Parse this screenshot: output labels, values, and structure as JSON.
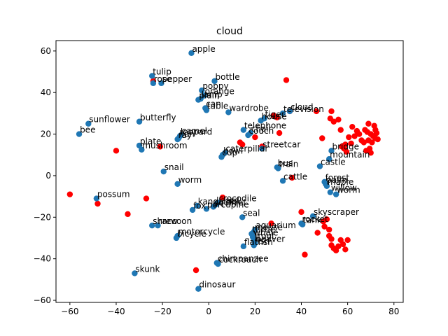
{
  "chart_data": {
    "type": "scatter",
    "title": "cloud",
    "xlabel": "",
    "ylabel": "",
    "xlim": [
      -66,
      84
    ],
    "ylim": [
      -61,
      65
    ],
    "xticks": [
      -60,
      -40,
      -20,
      0,
      20,
      40,
      60,
      80
    ],
    "yticks": [
      -60,
      -40,
      -20,
      0,
      20,
      40,
      60
    ],
    "grid": false,
    "colors": {
      "labeled": "#1f77b4",
      "unlabeled": "#ff0000",
      "axis": "#000000"
    },
    "labeled_points": [
      {
        "label": "apple",
        "x": -7.5,
        "y": 59
      },
      {
        "label": "tulip",
        "x": -24.5,
        "y": 48
      },
      {
        "label": "rose",
        "x": -24,
        "y": 44.5
      },
      {
        "label": "pepper",
        "x": -20.5,
        "y": 44.5
      },
      {
        "label": "bottle",
        "x": 2.5,
        "y": 45.5
      },
      {
        "label": "poppy",
        "x": -3,
        "y": 41
      },
      {
        "label": "orange",
        "x": -2,
        "y": 38.5
      },
      {
        "label": "lamp",
        "x": -3.5,
        "y": 37
      },
      {
        "label": "plain",
        "x": -4.5,
        "y": 36.5
      },
      {
        "label": "can",
        "x": -1.5,
        "y": 32.5
      },
      {
        "label": "table",
        "x": -1,
        "y": 31.5
      },
      {
        "label": "wardrobe",
        "x": 8.5,
        "y": 30.5
      },
      {
        "label": "cloud",
        "x": 35,
        "y": 31
      },
      {
        "label": "television",
        "x": 32,
        "y": 30
      },
      {
        "label": "tiger",
        "x": 24,
        "y": 27.5
      },
      {
        "label": "house",
        "x": 22.5,
        "y": 26.5
      },
      {
        "label": "telephone",
        "x": 15,
        "y": 22
      },
      {
        "label": "chair",
        "x": 18,
        "y": 20.5
      },
      {
        "label": "couch",
        "x": 17,
        "y": 19.5
      },
      {
        "label": "sunflower",
        "x": -52,
        "y": 25
      },
      {
        "label": "butterfly",
        "x": -30,
        "y": 26
      },
      {
        "label": "bee",
        "x": -56,
        "y": 20
      },
      {
        "label": "camel",
        "x": -12,
        "y": 19.5
      },
      {
        "label": "leopard",
        "x": -12.5,
        "y": 19
      },
      {
        "label": "lion",
        "x": -13,
        "y": 18
      },
      {
        "label": "ray",
        "x": -13.5,
        "y": 17.5
      },
      {
        "label": "plate",
        "x": -30,
        "y": 14.5
      },
      {
        "label": "mushroom",
        "x": -29,
        "y": 12.5
      },
      {
        "label": "caterpillar",
        "x": 7,
        "y": 11
      },
      {
        "label": "bowl",
        "x": 6,
        "y": 10
      },
      {
        "label": "cup",
        "x": 5.5,
        "y": 9
      },
      {
        "label": "streetcar",
        "x": 23,
        "y": 13
      },
      {
        "label": "bridge",
        "x": 53,
        "y": 12
      },
      {
        "label": "mountain",
        "x": 52,
        "y": 8
      },
      {
        "label": "castle",
        "x": 48,
        "y": 4.5
      },
      {
        "label": "bus",
        "x": 29.5,
        "y": 4
      },
      {
        "label": "train",
        "x": 30,
        "y": 3.5
      },
      {
        "label": "snail",
        "x": -19.5,
        "y": 2
      },
      {
        "label": "worm",
        "x": -13.5,
        "y": -4
      },
      {
        "label": "cattle",
        "x": 32,
        "y": -2.5
      },
      {
        "label": "forest",
        "x": 50,
        "y": -3
      },
      {
        "label": "palm",
        "x": 50.5,
        "y": -4
      },
      {
        "label": "maple",
        "x": 51,
        "y": -5
      },
      {
        "label": "willow",
        "x": 52.5,
        "y": -8
      },
      {
        "label": "worm",
        "x": 55,
        "y": -9
      },
      {
        "label": "possum",
        "x": -48.5,
        "y": -11
      },
      {
        "label": "crocodile",
        "x": 4,
        "y": -13
      },
      {
        "label": "lizard",
        "x": 3,
        "y": -14
      },
      {
        "label": "kangaroo",
        "x": -5,
        "y": -14.5
      },
      {
        "label": "squirrel",
        "x": 2,
        "y": -15
      },
      {
        "label": "porcupine",
        "x": -1,
        "y": -16
      },
      {
        "label": "fox",
        "x": -7,
        "y": -16.5
      },
      {
        "label": "skyscraper",
        "x": 45,
        "y": -19.5
      },
      {
        "label": "seal",
        "x": 14.5,
        "y": -20
      },
      {
        "label": "rocket",
        "x": 40,
        "y": -23
      },
      {
        "label": "tank",
        "x": 40.5,
        "y": -23.5
      },
      {
        "label": "shrew",
        "x": -24.5,
        "y": -24
      },
      {
        "label": "raccoon",
        "x": -22,
        "y": -24
      },
      {
        "label": "aquarium",
        "x": 20,
        "y": -26
      },
      {
        "label": "mouse",
        "x": 19.5,
        "y": -27
      },
      {
        "label": "motorcycle",
        "x": -13.5,
        "y": -29
      },
      {
        "label": "bicycle",
        "x": -14,
        "y": -30
      },
      {
        "label": "turtle",
        "x": 18.5,
        "y": -28
      },
      {
        "label": "whale",
        "x": 19,
        "y": -29.5
      },
      {
        "label": "trout",
        "x": 19.5,
        "y": -31
      },
      {
        "label": "beaver",
        "x": 20,
        "y": -32.5
      },
      {
        "label": "flatfish",
        "x": 15,
        "y": -34
      },
      {
        "label": "fish",
        "x": 19.5,
        "y": -33.5
      },
      {
        "label": "chimpanzee",
        "x": 3.5,
        "y": -42
      },
      {
        "label": "cockroach",
        "x": 4,
        "y": -42.5
      },
      {
        "label": "skunk",
        "x": -32,
        "y": -47
      },
      {
        "label": "dinosaur",
        "x": -4.5,
        "y": -54.5
      }
    ],
    "unlabeled_points": [
      [
        -60,
        -9
      ],
      [
        -48,
        -13.5
      ],
      [
        -40,
        12
      ],
      [
        -35,
        -18.5
      ],
      [
        -27,
        -11
      ],
      [
        -24,
        45.5
      ],
      [
        -21,
        14
      ],
      [
        -5.5,
        -45.5
      ],
      [
        6,
        -10.5
      ],
      [
        13.5,
        16
      ],
      [
        14.5,
        15
      ],
      [
        20,
        18.5
      ],
      [
        23,
        14
      ],
      [
        27,
        -23
      ],
      [
        28,
        29
      ],
      [
        29.5,
        28
      ],
      [
        30.5,
        20.5
      ],
      [
        33.5,
        46
      ],
      [
        35,
        31
      ],
      [
        36,
        -1
      ],
      [
        40,
        -17.5
      ],
      [
        41.5,
        -38
      ],
      [
        46.5,
        31
      ],
      [
        47,
        -27.5
      ],
      [
        49,
        18
      ],
      [
        49.5,
        -22
      ],
      [
        50,
        -24.5
      ],
      [
        51,
        -21
      ],
      [
        52,
        -26
      ],
      [
        52,
        -29
      ],
      [
        53,
        -30.5
      ],
      [
        53,
        -33.5
      ],
      [
        54,
        -35
      ],
      [
        55,
        -36
      ],
      [
        56,
        -34
      ],
      [
        57,
        -31
      ],
      [
        58,
        -33
      ],
      [
        59,
        -35.5
      ],
      [
        60,
        -31
      ],
      [
        52.5,
        27.5
      ],
      [
        53,
        31
      ],
      [
        54,
        26
      ],
      [
        56,
        27
      ],
      [
        57,
        22
      ],
      [
        57.5,
        14
      ],
      [
        58.5,
        13
      ],
      [
        59,
        15
      ],
      [
        59.5,
        11.5
      ],
      [
        60.5,
        18.5
      ],
      [
        61.5,
        15.5
      ],
      [
        62,
        23.5
      ],
      [
        63,
        19
      ],
      [
        64,
        21.5
      ],
      [
        65,
        20
      ],
      [
        66,
        17
      ],
      [
        67,
        16
      ],
      [
        68,
        12
      ],
      [
        68.5,
        21
      ],
      [
        69,
        25
      ],
      [
        69.5,
        13
      ],
      [
        70,
        11
      ],
      [
        70.5,
        16
      ],
      [
        71,
        19
      ],
      [
        71.5,
        24
      ],
      [
        72,
        22
      ],
      [
        72.5,
        20.5
      ],
      [
        73,
        17.5
      ],
      [
        72,
        18
      ],
      [
        70,
        20
      ],
      [
        69,
        17
      ],
      [
        67.5,
        22
      ]
    ]
  }
}
